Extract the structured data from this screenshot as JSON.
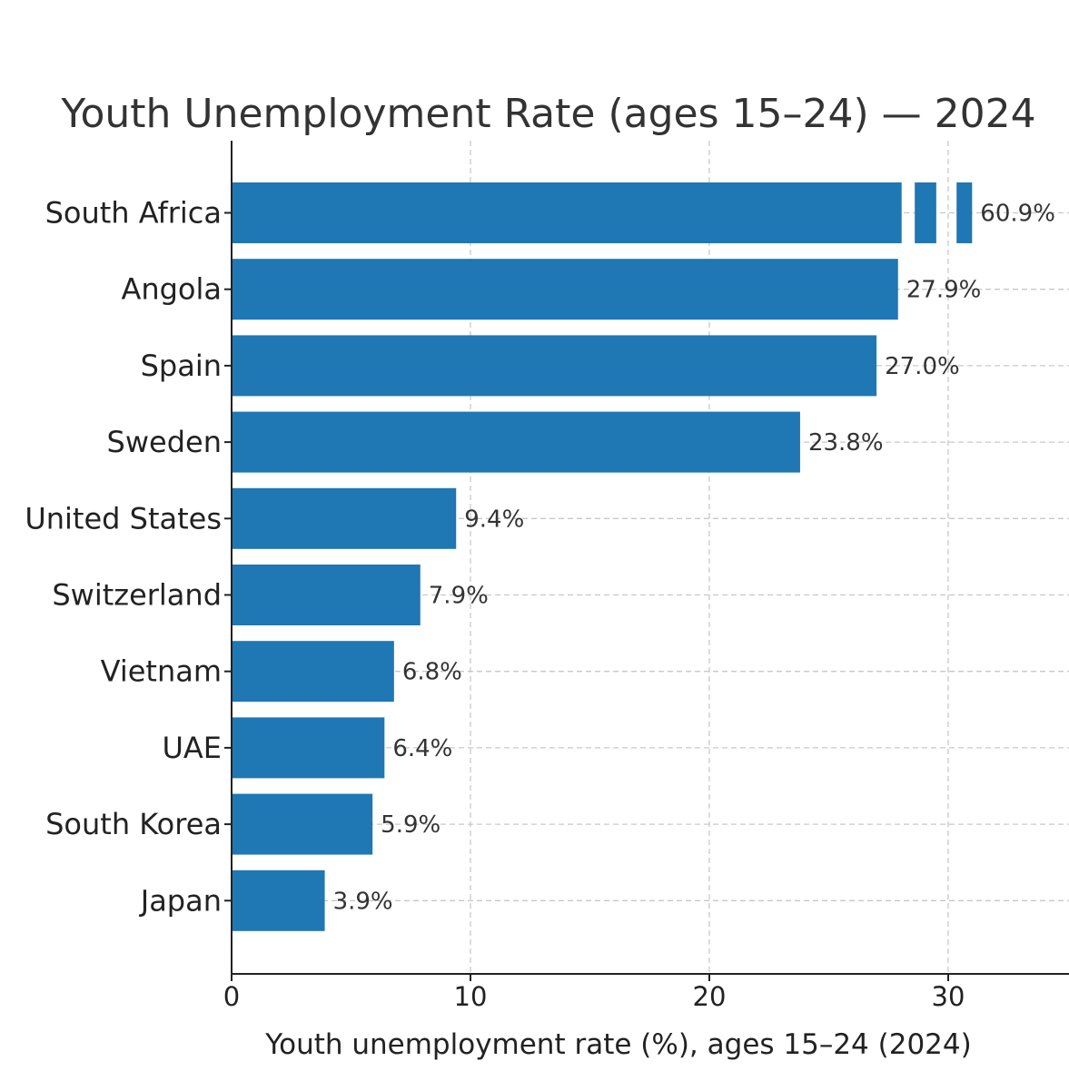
{
  "chart_data": {
    "type": "bar",
    "orientation": "horizontal",
    "title": "Youth Unemployment Rate (ages 15–24) — 2024",
    "xlabel": "Youth unemployment rate (%), ages 15–24 (2024)",
    "ylabel": "",
    "xlim": [
      0,
      35
    ],
    "xticks": [
      0,
      10,
      20,
      30
    ],
    "grid": true,
    "color": "#1f77b4",
    "axis_break": {
      "category": "South Africa",
      "displayed_up_to": 31,
      "actual_value": 60.9
    },
    "categories": [
      "South Africa",
      "Angola",
      "Spain",
      "Sweden",
      "United States",
      "Switzerland",
      "Vietnam",
      "UAE",
      "South Korea",
      "Japan"
    ],
    "values": [
      60.9,
      27.9,
      27.0,
      23.8,
      9.4,
      7.9,
      6.8,
      6.4,
      5.9,
      3.9
    ],
    "value_labels": [
      "60.9%",
      "27.9%",
      "27.0%",
      "23.8%",
      "9.4%",
      "7.9%",
      "6.8%",
      "6.4%",
      "5.9%",
      "3.9%"
    ]
  }
}
